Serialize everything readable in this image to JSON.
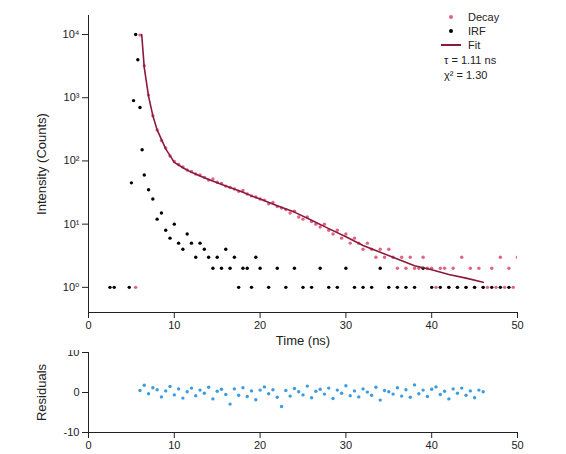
{
  "chart_data": [
    {
      "type": "scatter",
      "xlabel": "Time (ns)",
      "ylabel": "Intensity (Counts)",
      "log": "y",
      "legend": "top-right",
      "annotations": [
        "τ = 1.11 ns",
        "χ² = 1.30"
      ],
      "xlim": [
        0,
        50
      ],
      "xticks": [
        0,
        10,
        20,
        30,
        40,
        50
      ],
      "ylim": [
        0.4,
        20000
      ],
      "yticks": [
        {
          "value": 1,
          "label": "10⁰"
        },
        {
          "value": 10,
          "label": "10¹"
        },
        {
          "value": 100,
          "label": "10²"
        },
        {
          "value": 1000,
          "label": "10³"
        },
        {
          "value": 10000,
          "label": "10⁴"
        }
      ],
      "series": [
        {
          "name": "Decay",
          "color": "#e0647f",
          "marker": "circle",
          "x": [
            5.5,
            6,
            6.5,
            7,
            7.5,
            8,
            8.5,
            9,
            9.5,
            10,
            10.5,
            11,
            11.5,
            12,
            12.5,
            13,
            13.5,
            14,
            14.5,
            15,
            15.5,
            16,
            16.5,
            17,
            17.5,
            18,
            18.5,
            19,
            19.5,
            20,
            20.5,
            21,
            21.5,
            22,
            22.5,
            23,
            23.5,
            24,
            24.5,
            25,
            25.5,
            26,
            26.5,
            27,
            27.5,
            28,
            28.5,
            29,
            29.5,
            30,
            30.5,
            31,
            31.5,
            32,
            32.5,
            33,
            33.5,
            34,
            34.5,
            35,
            35.5,
            36,
            36.5,
            37,
            37.5,
            38,
            38.5,
            39,
            39.5,
            40,
            40.5,
            41,
            41.5,
            42,
            42.5,
            43,
            43.5,
            44,
            44.5,
            45,
            45.5,
            46,
            46.5,
            47,
            47.5,
            48,
            48.5,
            49,
            49.5,
            50
          ],
          "values": [
            1,
            9800,
            3200,
            1100,
            520,
            310,
            210,
            160,
            120,
            98,
            88,
            80,
            72,
            68,
            62,
            60,
            55,
            50,
            52,
            46,
            44,
            40,
            38,
            36,
            33,
            34,
            30,
            28,
            27,
            25,
            24,
            21,
            22,
            19,
            18,
            17,
            15,
            16,
            13,
            12,
            13,
            11,
            10,
            9,
            10,
            8,
            7,
            8,
            6,
            7,
            5,
            6,
            5,
            4,
            5,
            4,
            3,
            4,
            3,
            4,
            3,
            2,
            3,
            2,
            3,
            2,
            2,
            3,
            2,
            2,
            1,
            2,
            2,
            1,
            2,
            1,
            3,
            1,
            2,
            1,
            2,
            1,
            1,
            2,
            1,
            3,
            1,
            2,
            1,
            3
          ]
        },
        {
          "name": "IRF",
          "color": "#000000",
          "marker": "circle",
          "x": [
            2.5,
            3,
            4.75,
            5,
            5.25,
            5.5,
            5.75,
            6,
            6.25,
            6.5,
            7,
            7.5,
            8,
            8.5,
            9,
            9.5,
            10,
            10.5,
            11,
            11.5,
            12,
            12.5,
            13,
            13.5,
            14,
            14.5,
            15,
            15.5,
            16,
            16.5,
            17,
            17.5,
            18,
            18.5,
            19,
            19.5,
            20,
            21,
            22,
            23,
            24,
            25,
            26,
            27,
            28,
            29,
            30,
            31,
            32,
            33,
            34,
            35,
            36,
            37,
            38,
            39,
            40,
            41,
            42,
            43,
            44,
            45,
            46,
            47,
            48,
            49
          ],
          "values": [
            1,
            1,
            1,
            45,
            900,
            10000,
            4000,
            700,
            150,
            60,
            35,
            25,
            12,
            15,
            8,
            6,
            10,
            5,
            4,
            7,
            5,
            3,
            5,
            4,
            3,
            2,
            3,
            2,
            4,
            2,
            3,
            1,
            2,
            2,
            1,
            3,
            2,
            1,
            2,
            1,
            2,
            1,
            1,
            2,
            1,
            1,
            2,
            1,
            1,
            1,
            2,
            1,
            1,
            1,
            1,
            2,
            1,
            1,
            1,
            1,
            1,
            1,
            1,
            1,
            1,
            1
          ]
        },
        {
          "name": "Fit",
          "color": "#8b1a3c",
          "type": "line",
          "line_style": "solid",
          "x": [
            6.2,
            6.5,
            7,
            7.5,
            8,
            9,
            10,
            11,
            12,
            13,
            14,
            15,
            16,
            17,
            18,
            19,
            20,
            22,
            24,
            26,
            28,
            30,
            32,
            34,
            36,
            38,
            40,
            42,
            44,
            46
          ],
          "values": [
            10000,
            3000,
            1050,
            520,
            310,
            155,
            95,
            78,
            66,
            58,
            51,
            45,
            40,
            36,
            32,
            28,
            25,
            19.5,
            15.5,
            11.5,
            8.5,
            6.3,
            4.6,
            3.6,
            2.8,
            2.2,
            1.9,
            1.6,
            1.4,
            1.2
          ]
        }
      ]
    },
    {
      "type": "scatter",
      "ylabel": "Residuals",
      "color": "#3d9be0",
      "marker": "circle",
      "xlim": [
        0,
        50
      ],
      "xticks": [
        0,
        10,
        20,
        30,
        40,
        50
      ],
      "ylim": [
        -10,
        10
      ],
      "yticks": [
        -10,
        0,
        10
      ],
      "x": [
        6,
        6.5,
        7,
        7.5,
        8,
        8.5,
        9,
        9.5,
        10,
        10.5,
        11,
        11.5,
        12,
        12.5,
        13,
        13.5,
        14,
        14.5,
        15,
        15.5,
        16,
        16.5,
        17,
        17.5,
        18,
        18.5,
        19,
        19.5,
        20,
        20.5,
        21,
        21.5,
        22,
        22.5,
        23,
        23.5,
        24,
        24.5,
        25,
        25.5,
        26,
        26.5,
        27,
        27.5,
        28,
        28.5,
        29,
        29.5,
        30,
        30.5,
        31,
        31.5,
        32,
        32.5,
        33,
        33.5,
        34,
        34.5,
        35,
        35.5,
        36,
        36.5,
        37,
        37.5,
        38,
        38.5,
        39,
        39.5,
        40,
        40.5,
        41,
        41.5,
        42,
        42.5,
        43,
        43.5,
        44,
        44.5,
        45,
        45.5,
        46
      ],
      "values": [
        0.5,
        1.8,
        -0.3,
        1.2,
        0.7,
        -1.1,
        0.4,
        1.5,
        -0.6,
        0.9,
        -1.4,
        0.2,
        1.1,
        -0.8,
        0.6,
        -0.2,
        1.3,
        -1.6,
        0.3,
        0.8,
        -0.5,
        -2.9,
        0.9,
        -0.7,
        1.2,
        -1.0,
        0.4,
        -1.8,
        0.6,
        1.4,
        -0.3,
        0.7,
        -1.2,
        -3.5,
        0.5,
        -0.9,
        1.0,
        0.2,
        -0.6,
        1.6,
        -1.3,
        0.3,
        0.8,
        -0.4,
        1.1,
        -1.5,
        0.6,
        -0.2,
        1.7,
        -0.8,
        0.4,
        -1.1,
        0.9,
        0.1,
        -0.7,
        1.3,
        -1.9,
        0.5,
        0.2,
        -0.4,
        1.2,
        -0.9,
        0.7,
        -1.2,
        1.9,
        -0.3,
        0.6,
        -1.0,
        0.8,
        1.4,
        -0.5,
        0.3,
        -1.6,
        0.9,
        -0.2,
        1.1,
        -0.7,
        0.4,
        -1.3,
        0.6,
        0.2
      ]
    }
  ]
}
